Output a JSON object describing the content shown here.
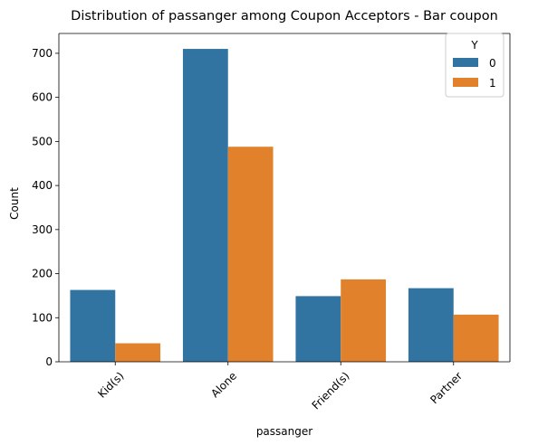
{
  "chart_data": {
    "type": "bar",
    "title": "Distribution of passanger among Coupon Acceptors - Bar coupon",
    "xlabel": "passanger",
    "ylabel": "Count",
    "categories": [
      "Kid(s)",
      "Alone",
      "Friend(s)",
      "Partner"
    ],
    "series": [
      {
        "name": "0",
        "color": "#3274a1",
        "values": [
          163,
          710,
          149,
          167
        ]
      },
      {
        "name": "1",
        "color": "#e1812c",
        "values": [
          42,
          488,
          187,
          107
        ]
      }
    ],
    "ylim": [
      0,
      745
    ],
    "yticks": [
      0,
      100,
      200,
      300,
      400,
      500,
      600,
      700
    ],
    "legend": {
      "title": "Y",
      "placement": "top-right"
    },
    "grid": false
  }
}
